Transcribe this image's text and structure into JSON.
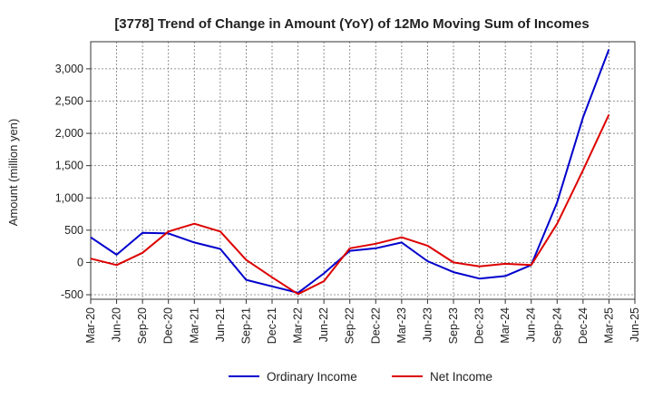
{
  "chart_data": {
    "type": "line",
    "title": "[3778]  Trend of Change in Amount (YoY) of 12Mo Moving Sum of Incomes",
    "xlabel": "",
    "ylabel": "Amount (million yen)",
    "categories": [
      "Mar-20",
      "Jun-20",
      "Sep-20",
      "Dec-20",
      "Mar-21",
      "Jun-21",
      "Sep-21",
      "Dec-21",
      "Mar-22",
      "Jun-22",
      "Sep-22",
      "Dec-22",
      "Mar-23",
      "Jun-23",
      "Sep-23",
      "Dec-23",
      "Mar-24",
      "Jun-24",
      "Sep-24",
      "Dec-24",
      "Mar-25",
      "Jun-25"
    ],
    "ylim": [
      -570,
      3420
    ],
    "yticks": [
      -500,
      0,
      500,
      1000,
      1500,
      2000,
      2500,
      3000
    ],
    "ytick_labels": [
      "-500",
      "0",
      "500",
      "1,000",
      "1,500",
      "2,000",
      "2,500",
      "3,000"
    ],
    "grid": true,
    "legend_position": "bottom",
    "series": [
      {
        "name": "Ordinary Income",
        "color": "#0000cc",
        "values": [
          390,
          120,
          460,
          450,
          310,
          210,
          -270,
          -370,
          -470,
          -170,
          180,
          220,
          310,
          20,
          -150,
          -250,
          -210,
          -40,
          930,
          2250,
          3300,
          null
        ]
      },
      {
        "name": "Net Income",
        "color": "#dd0000",
        "values": [
          60,
          -40,
          150,
          480,
          600,
          480,
          40,
          -230,
          -490,
          -290,
          220,
          290,
          390,
          260,
          0,
          -60,
          -20,
          -40,
          600,
          1430,
          2290,
          null
        ]
      }
    ]
  }
}
